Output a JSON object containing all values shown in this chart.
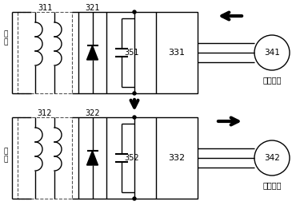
{
  "bg_color": "#ffffff",
  "line_color": "#000000",
  "label_311": "311",
  "label_312": "312",
  "label_321": "321",
  "label_322": "322",
  "label_331": "331",
  "label_332": "332",
  "label_341": "341",
  "label_342": "342",
  "label_351": "351",
  "label_352": "352",
  "label_wangdian_top": "网\n电",
  "label_wangdian_bot": "网\n电",
  "label_zhidong": "制动工况",
  "label_qianyin": "牵引工况",
  "figsize": [
    3.85,
    2.67
  ],
  "dpi": 100
}
